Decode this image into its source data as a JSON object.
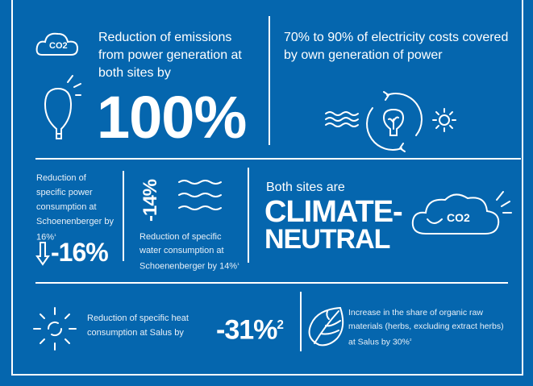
{
  "top_left": {
    "co2_label": "CO2",
    "text": "Reduction of emissions from power generation at both sites by",
    "value": "100%"
  },
  "top_right": {
    "text": "70% to 90% of electricity costs covered by own generation of power"
  },
  "middle_left": {
    "text": "Reduction of specific power consumption at Schoenenberger by 16%",
    "footnote": "1",
    "value": "-16%"
  },
  "middle_water": {
    "value": "-14%",
    "text": "Reduction of specific water consumption at Schoenenberger by 14%",
    "footnote": "1"
  },
  "middle_right": {
    "intro": "Both sites are",
    "headline_1": "CLIMATE-",
    "headline_2": "NEUTRAL",
    "co2_label": "CO2"
  },
  "bottom_left": {
    "text": "Reduction of specific heat consumption at Salus by",
    "value": "-31%",
    "footnote": "2"
  },
  "bottom_right": {
    "text": "Increase in the share of organic raw materials (herbs, excluding extract herbs) at Salus by 30%",
    "footnote": "2"
  }
}
